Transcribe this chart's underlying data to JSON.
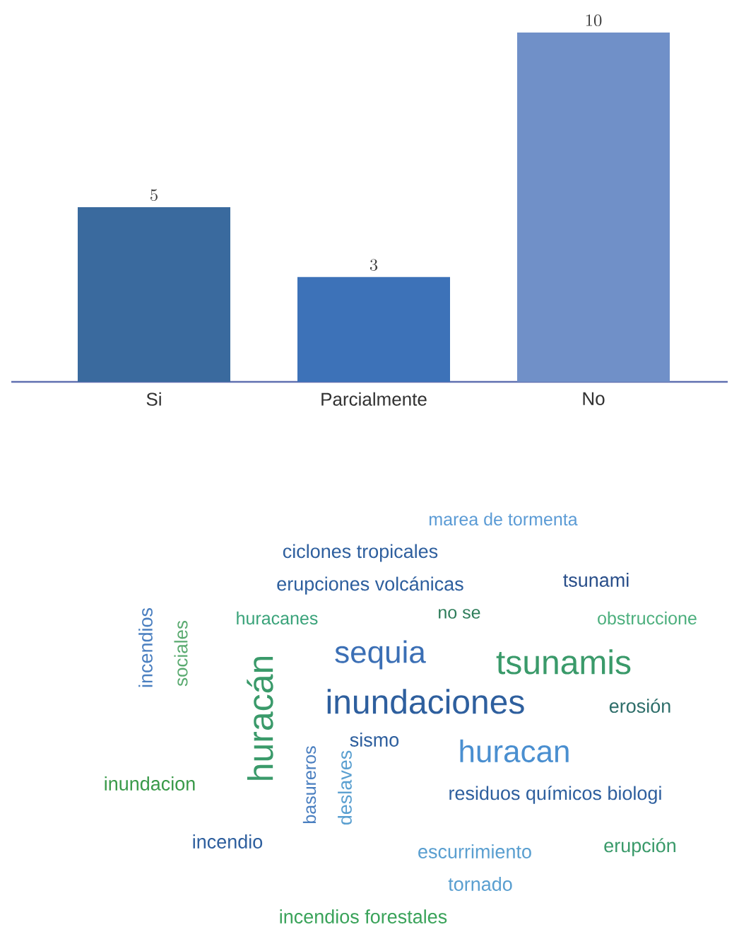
{
  "chart_data": [
    {
      "type": "bar",
      "categories": [
        "Si",
        "Parcialmente",
        "No"
      ],
      "values": [
        5,
        3,
        10
      ],
      "colors": [
        "#3a6a9e",
        "#3d72b8",
        "#7090c8"
      ],
      "data_labels": true
    },
    {
      "type": "other",
      "annotations": [
        "marea de tormenta",
        "ciclones tropicales",
        "erupciones volcánicas",
        "tsunami",
        "huracanes",
        "no se",
        "obstruccione",
        "incendios",
        "sociales",
        "huracán",
        "sequia",
        "tsunamis",
        "inundaciones",
        "erosión",
        "sismo",
        "huracan",
        "inundacion",
        "basureros",
        "deslaves",
        "residuos químicos biologi",
        "incendio",
        "escurrimiento",
        "erupción",
        "tornado",
        "incendios forestales"
      ]
    }
  ]
}
